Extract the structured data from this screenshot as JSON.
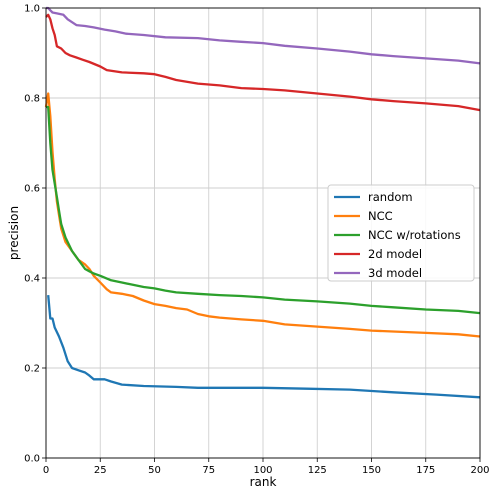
{
  "chart_data": {
    "type": "line",
    "xlabel": "rank",
    "ylabel": "precision",
    "xlim": [
      0,
      200
    ],
    "ylim": [
      0,
      1.0
    ],
    "xticks": [
      0,
      25,
      50,
      75,
      100,
      125,
      150,
      175,
      200
    ],
    "yticks": [
      0.0,
      0.2,
      0.4,
      0.6,
      0.8,
      1.0
    ],
    "grid": true,
    "legend_position": "center-right",
    "series": [
      {
        "name": "random",
        "color": "#1f77b4",
        "points": [
          [
            1,
            0.362
          ],
          [
            2,
            0.31
          ],
          [
            3,
            0.31
          ],
          [
            4,
            0.29
          ],
          [
            6,
            0.27
          ],
          [
            8,
            0.245
          ],
          [
            10,
            0.215
          ],
          [
            12,
            0.2
          ],
          [
            15,
            0.195
          ],
          [
            18,
            0.19
          ],
          [
            20,
            0.183
          ],
          [
            22,
            0.175
          ],
          [
            27,
            0.175
          ],
          [
            30,
            0.17
          ],
          [
            35,
            0.163
          ],
          [
            45,
            0.16
          ],
          [
            60,
            0.158
          ],
          [
            70,
            0.156
          ],
          [
            80,
            0.156
          ],
          [
            100,
            0.156
          ],
          [
            120,
            0.154
          ],
          [
            140,
            0.152
          ],
          [
            160,
            0.146
          ],
          [
            180,
            0.141
          ],
          [
            200,
            0.135
          ]
        ]
      },
      {
        "name": "NCC",
        "color": "#ff7f0e",
        "points": [
          [
            0,
            0.78
          ],
          [
            1,
            0.81
          ],
          [
            2,
            0.76
          ],
          [
            3,
            0.68
          ],
          [
            4,
            0.62
          ],
          [
            5,
            0.57
          ],
          [
            6,
            0.54
          ],
          [
            7,
            0.51
          ],
          [
            9,
            0.48
          ],
          [
            12,
            0.46
          ],
          [
            15,
            0.44
          ],
          [
            18,
            0.43
          ],
          [
            20,
            0.42
          ],
          [
            22,
            0.405
          ],
          [
            25,
            0.39
          ],
          [
            28,
            0.375
          ],
          [
            30,
            0.368
          ],
          [
            35,
            0.365
          ],
          [
            40,
            0.36
          ],
          [
            45,
            0.35
          ],
          [
            50,
            0.342
          ],
          [
            55,
            0.338
          ],
          [
            60,
            0.333
          ],
          [
            65,
            0.33
          ],
          [
            70,
            0.32
          ],
          [
            75,
            0.315
          ],
          [
            80,
            0.312
          ],
          [
            90,
            0.308
          ],
          [
            100,
            0.305
          ],
          [
            110,
            0.297
          ],
          [
            125,
            0.292
          ],
          [
            140,
            0.287
          ],
          [
            150,
            0.283
          ],
          [
            175,
            0.278
          ],
          [
            190,
            0.275
          ],
          [
            200,
            0.27
          ]
        ]
      },
      {
        "name": "NCC w/rotations",
        "color": "#2ca02c",
        "points": [
          [
            0,
            0.78
          ],
          [
            1,
            0.78
          ],
          [
            2,
            0.7
          ],
          [
            3,
            0.64
          ],
          [
            4,
            0.61
          ],
          [
            5,
            0.58
          ],
          [
            6,
            0.55
          ],
          [
            7,
            0.52
          ],
          [
            9,
            0.49
          ],
          [
            12,
            0.46
          ],
          [
            15,
            0.44
          ],
          [
            18,
            0.42
          ],
          [
            20,
            0.415
          ],
          [
            22,
            0.41
          ],
          [
            25,
            0.405
          ],
          [
            30,
            0.395
          ],
          [
            35,
            0.39
          ],
          [
            40,
            0.385
          ],
          [
            45,
            0.38
          ],
          [
            50,
            0.377
          ],
          [
            55,
            0.372
          ],
          [
            60,
            0.368
          ],
          [
            70,
            0.365
          ],
          [
            80,
            0.362
          ],
          [
            90,
            0.36
          ],
          [
            100,
            0.357
          ],
          [
            110,
            0.352
          ],
          [
            125,
            0.348
          ],
          [
            140,
            0.343
          ],
          [
            150,
            0.338
          ],
          [
            160,
            0.335
          ],
          [
            175,
            0.33
          ],
          [
            190,
            0.327
          ],
          [
            200,
            0.322
          ]
        ]
      },
      {
        "name": "2d model",
        "color": "#d62728",
        "points": [
          [
            0,
            0.98
          ],
          [
            1,
            0.985
          ],
          [
            2,
            0.975
          ],
          [
            3,
            0.955
          ],
          [
            4,
            0.94
          ],
          [
            5,
            0.915
          ],
          [
            7,
            0.91
          ],
          [
            9,
            0.9
          ],
          [
            11,
            0.895
          ],
          [
            14,
            0.89
          ],
          [
            17,
            0.885
          ],
          [
            20,
            0.88
          ],
          [
            25,
            0.87
          ],
          [
            28,
            0.862
          ],
          [
            35,
            0.857
          ],
          [
            45,
            0.855
          ],
          [
            50,
            0.853
          ],
          [
            55,
            0.847
          ],
          [
            60,
            0.84
          ],
          [
            70,
            0.832
          ],
          [
            80,
            0.828
          ],
          [
            90,
            0.822
          ],
          [
            100,
            0.82
          ],
          [
            110,
            0.817
          ],
          [
            125,
            0.81
          ],
          [
            140,
            0.803
          ],
          [
            150,
            0.797
          ],
          [
            160,
            0.793
          ],
          [
            175,
            0.788
          ],
          [
            190,
            0.782
          ],
          [
            200,
            0.773
          ]
        ]
      },
      {
        "name": "3d model",
        "color": "#9467bd",
        "points": [
          [
            0,
            1.0
          ],
          [
            1,
            1.0
          ],
          [
            2,
            0.995
          ],
          [
            3,
            0.99
          ],
          [
            5,
            0.988
          ],
          [
            8,
            0.985
          ],
          [
            10,
            0.975
          ],
          [
            14,
            0.962
          ],
          [
            18,
            0.96
          ],
          [
            22,
            0.957
          ],
          [
            27,
            0.952
          ],
          [
            32,
            0.948
          ],
          [
            37,
            0.943
          ],
          [
            45,
            0.94
          ],
          [
            55,
            0.935
          ],
          [
            70,
            0.933
          ],
          [
            80,
            0.928
          ],
          [
            90,
            0.925
          ],
          [
            100,
            0.922
          ],
          [
            110,
            0.916
          ],
          [
            125,
            0.91
          ],
          [
            140,
            0.903
          ],
          [
            150,
            0.897
          ],
          [
            160,
            0.893
          ],
          [
            175,
            0.888
          ],
          [
            190,
            0.883
          ],
          [
            200,
            0.877
          ]
        ]
      }
    ]
  }
}
